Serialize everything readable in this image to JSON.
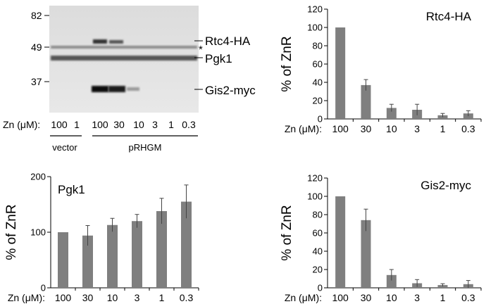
{
  "blot": {
    "mw_markers": [
      "82",
      "49",
      "37"
    ],
    "band_labels": {
      "rtc4": "Rtc4-HA",
      "pgk1": "Pgk1",
      "gis2": "Gis2-myc"
    },
    "asterisk": "*",
    "zn_label": "Zn (μM):",
    "lanes": [
      "100",
      "1",
      "100",
      "30",
      "10",
      "3",
      "1",
      "0.3"
    ],
    "group_vector": "vector",
    "group_prhgm": "pRHGM"
  },
  "colors": {
    "bar": "#7f7f7f",
    "blot_bg": "#e6e6e6",
    "band": "#111111"
  },
  "chart_data": [
    {
      "type": "bar",
      "panel_label": "Rtc4-HA",
      "ylabel": "% of ZnR",
      "xlabel": "Zn (μM):",
      "categories": [
        "100",
        "30",
        "10",
        "3",
        "1",
        "0.3"
      ],
      "values": [
        100,
        37,
        12,
        10,
        4,
        6
      ],
      "errors": [
        0,
        6,
        4,
        6,
        2,
        3
      ],
      "ylim": [
        0,
        120
      ],
      "yticks": [
        "0",
        "20",
        "40",
        "60",
        "80",
        "100",
        "120"
      ]
    },
    {
      "type": "bar",
      "panel_label": "Pgk1",
      "ylabel": "% of ZnR",
      "xlabel": "Zn (μM):",
      "categories": [
        "100",
        "30",
        "10",
        "3",
        "1",
        "0.3"
      ],
      "values": [
        100,
        94,
        113,
        120,
        138,
        155
      ],
      "errors": [
        0,
        18,
        12,
        12,
        23,
        30
      ],
      "ylim": [
        0,
        200
      ],
      "yticks": [
        "0",
        "100",
        "200"
      ]
    },
    {
      "type": "bar",
      "panel_label": "Gis2-myc",
      "ylabel": "% of ZnR",
      "xlabel": "Zn (μM):",
      "categories": [
        "100",
        "30",
        "10",
        "3",
        "1",
        "0.3"
      ],
      "values": [
        100,
        74,
        14,
        5,
        3,
        4
      ],
      "errors": [
        0,
        12,
        6,
        4,
        1.5,
        4
      ],
      "ylim": [
        0,
        120
      ],
      "yticks": [
        "0",
        "20",
        "40",
        "60",
        "80",
        "100",
        "120"
      ]
    }
  ]
}
